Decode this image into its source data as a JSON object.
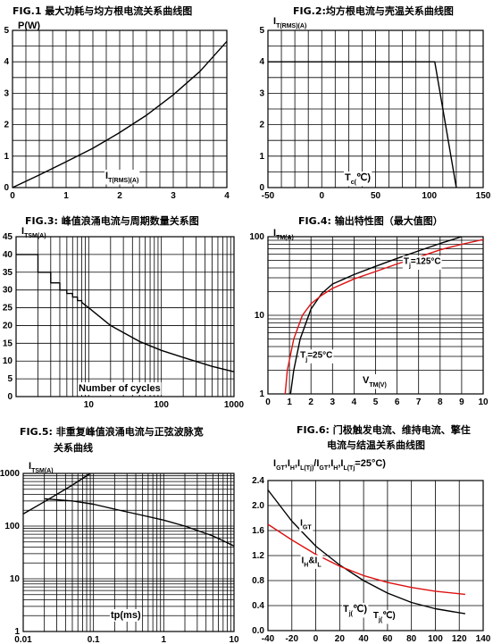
{
  "charts": [
    {
      "id": "fig1",
      "title": "FIG.1  最大功耗与均方根电流关系曲线图",
      "type": "line",
      "scale": "linear-linear",
      "xlim": [
        0,
        4
      ],
      "ylim": [
        0,
        5
      ],
      "xticks": [
        0,
        1,
        2,
        3,
        4
      ],
      "yticks": [
        0,
        1,
        2,
        3,
        4,
        5
      ],
      "xtick_labels": [
        "0",
        "1",
        "2",
        "3",
        "4"
      ],
      "ytick_labels": [
        "0",
        "1",
        "2",
        "3",
        "4",
        "5"
      ],
      "ylabel": "P(W)",
      "xlabel": "I_T(RMS)(A)",
      "series": [
        {
          "color": "#000000",
          "x": [
            0,
            0.5,
            1,
            1.5,
            2,
            2.5,
            3,
            3.5,
            4
          ],
          "y": [
            0,
            0.4,
            0.82,
            1.25,
            1.75,
            2.3,
            2.95,
            3.7,
            4.65
          ]
        }
      ],
      "annotations": []
    },
    {
      "id": "fig2",
      "title": "FIG.2:均方根电流与壳温关系曲线图",
      "type": "line",
      "scale": "linear-linear",
      "xlim": [
        -50,
        150
      ],
      "ylim": [
        0,
        5
      ],
      "xticks": [
        -50,
        0,
        50,
        100,
        150
      ],
      "yticks": [
        0,
        1,
        2,
        3,
        4,
        5
      ],
      "xtick_labels": [
        "-50",
        "0",
        "50",
        "100",
        "150"
      ],
      "ytick_labels": [
        "0",
        "1",
        "2",
        "3",
        "4",
        "5"
      ],
      "ylabel": "I_T(RMS)(A)",
      "xlabel": "T_c(℃)",
      "series": [
        {
          "color": "#000000",
          "x": [
            -50,
            105,
            125
          ],
          "y": [
            4,
            4,
            0
          ]
        }
      ],
      "annotations": []
    },
    {
      "id": "fig3",
      "title": "FIG.3:  峰值浪涌电流与周期数量关系图",
      "type": "line",
      "scale": "log-linear",
      "xlim": [
        1,
        1000
      ],
      "ylim": [
        0,
        45
      ],
      "xticks": [
        10,
        100,
        1000
      ],
      "yticks": [
        0,
        5,
        10,
        15,
        20,
        25,
        30,
        35,
        40,
        45
      ],
      "xtick_labels": [
        "10",
        "100",
        "1000"
      ],
      "ytick_labels": [
        "0",
        "5",
        "10",
        "15",
        "20",
        "25",
        "30",
        "35",
        "40",
        "45"
      ],
      "ylabel": "I_TSM(A)",
      "xlabel": "Number of cycles",
      "series": [
        {
          "color": "#000000",
          "x": [
            1,
            2,
            2,
            3,
            3,
            4,
            4,
            5,
            5,
            6,
            6,
            7,
            7,
            8,
            8,
            10,
            20,
            50,
            100,
            200,
            500,
            1000
          ],
          "y": [
            40,
            40,
            35,
            35,
            32,
            32,
            30,
            30,
            29,
            29,
            28,
            28,
            27,
            27,
            26.5,
            25,
            20,
            15.5,
            13,
            11,
            8.5,
            7
          ]
        }
      ],
      "annotations": []
    },
    {
      "id": "fig4",
      "title": "FIG.4:  输出特性图（最大值图）",
      "type": "line",
      "scale": "linear-log",
      "xlim": [
        0,
        10
      ],
      "ylim": [
        1,
        100
      ],
      "xticks": [
        0,
        1,
        2,
        3,
        4,
        5,
        6,
        7,
        8,
        9,
        10
      ],
      "yticks": [
        1,
        10,
        100
      ],
      "xtick_labels": [
        "0",
        "1",
        "2",
        "3",
        "4",
        "5",
        "6",
        "7",
        "8",
        "9",
        "10"
      ],
      "ytick_labels": [
        "1",
        "10",
        "100"
      ],
      "ylabel": "I_TM(A)",
      "xlabel": "V_TM(V)",
      "series": [
        {
          "color": "#000000",
          "x": [
            1.05,
            1.2,
            1.5,
            2,
            2.5,
            3,
            4,
            5,
            6,
            7,
            8,
            9
          ],
          "y": [
            1,
            2,
            5,
            12,
            19,
            25,
            33,
            42,
            53,
            66,
            82,
            100
          ]
        },
        {
          "color": "#dd1111",
          "x": [
            0.8,
            0.9,
            1.2,
            1.6,
            2,
            2.5,
            3,
            4,
            5,
            6,
            7,
            8,
            9,
            10
          ],
          "y": [
            1,
            2,
            5,
            10,
            14,
            18,
            22,
            29,
            36,
            45,
            55,
            68,
            80,
            92
          ]
        }
      ],
      "annotations": [
        {
          "text": "T_j=125°C",
          "x": 6.3,
          "y": 45
        },
        {
          "text": "T_j=25°C",
          "x": 1.5,
          "y": 2.9
        }
      ]
    },
    {
      "id": "fig5",
      "title": "FIG.5:  非重复峰值浪涌电流与正弦波脉宽",
      "title2": "关系曲线",
      "type": "line",
      "scale": "log-log",
      "xlim": [
        0.01,
        10
      ],
      "ylim": [
        1,
        1000
      ],
      "xticks": [
        0.01,
        0.1,
        1,
        10
      ],
      "yticks": [
        1,
        10,
        100,
        1000
      ],
      "xtick_labels": [
        "0.01",
        "0.1",
        "1",
        "10"
      ],
      "ytick_labels": [
        "1",
        "10",
        "100",
        "1000"
      ],
      "ylabel": "I_TSM(A)",
      "xlabel": "tp(ms)",
      "series": [
        {
          "color": "#000000",
          "x": [
            0.01,
            0.02,
            0.05,
            0.09
          ],
          "y": [
            170,
            290,
            600,
            1000
          ]
        },
        {
          "color": "#000000",
          "x": [
            0.02,
            0.05,
            0.1,
            0.2,
            0.5,
            1,
            2,
            5,
            10
          ],
          "y": [
            330,
            300,
            260,
            210,
            160,
            130,
            100,
            65,
            42
          ]
        }
      ],
      "annotations": []
    },
    {
      "id": "fig6",
      "title": "FIG.6:  门极触发电流、维持电流、擎住",
      "title2": "电流与结温关系曲线图",
      "type": "line",
      "scale": "linear-linear",
      "xlim": [
        -40,
        140
      ],
      "ylim": [
        0,
        2.4
      ],
      "xticks": [
        -40,
        -20,
        0,
        20,
        40,
        60,
        80,
        100,
        120,
        140
      ],
      "yticks": [
        0,
        0.4,
        0.8,
        1.2,
        1.6,
        2.0,
        2.4
      ],
      "xtick_labels": [
        "-40",
        "-20",
        "0",
        "20",
        "40",
        "60",
        "80",
        "100",
        "120",
        "140"
      ],
      "ytick_labels": [
        "0.0",
        "0.4",
        "0.8",
        "1.2",
        "1.6",
        "2.0",
        "2.4"
      ],
      "ylabel": "I_GT,I_H,I_L(T_j)/I_GT,I_H,I_L(T_j=25°C)",
      "xlabel": "T_j(℃)",
      "series": [
        {
          "color": "#000000",
          "x": [
            -40,
            -20,
            0,
            20,
            40,
            60,
            80,
            100,
            125
          ],
          "y": [
            2.25,
            1.75,
            1.35,
            1.05,
            0.8,
            0.6,
            0.45,
            0.35,
            0.27
          ]
        },
        {
          "color": "#dd1111",
          "x": [
            -40,
            -20,
            0,
            20,
            40,
            60,
            80,
            100,
            125
          ],
          "y": [
            1.7,
            1.45,
            1.22,
            1.03,
            0.88,
            0.77,
            0.69,
            0.63,
            0.58
          ]
        }
      ],
      "annotations": [
        {
          "text": "I_GT",
          "x": -13,
          "y": 1.68
        },
        {
          "text": "I_H&I_L",
          "x": -12,
          "y": 1.08
        },
        {
          "text": "T_j(℃)",
          "x": 48,
          "y": 0.2
        }
      ]
    }
  ]
}
